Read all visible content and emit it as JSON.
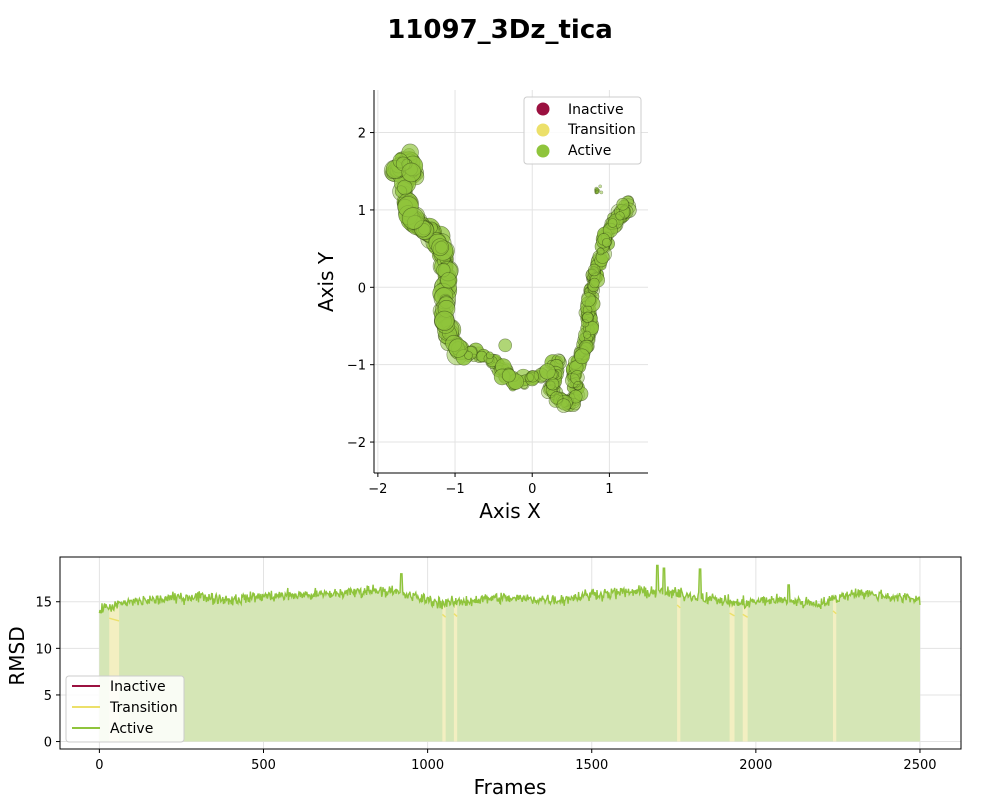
{
  "figure": {
    "title": "11097_3Dz_tica"
  },
  "colors": {
    "inactive": "#9b1140",
    "transition": "#ece06a",
    "active": "#8fc43c",
    "active_fill": "#d5e6b6",
    "transition_fill": "#f3efc1"
  },
  "chart_data": [
    {
      "type": "scatter",
      "title": "",
      "xlabel": "Axis X",
      "ylabel": "Axis Y",
      "xlim": [
        -2.05,
        1.5
      ],
      "ylim": [
        -2.4,
        2.55
      ],
      "xticks": [
        -2,
        -1,
        0,
        1
      ],
      "yticks": [
        -2,
        -1,
        0,
        1,
        2
      ],
      "grid": true,
      "legend": {
        "placement": "top-right",
        "entries": [
          "Inactive",
          "Transition",
          "Active"
        ]
      },
      "path": [
        [
          -1.8,
          1.45
        ],
        [
          -1.7,
          1.6
        ],
        [
          -1.6,
          1.7
        ],
        [
          -1.55,
          1.45
        ],
        [
          -1.65,
          1.2
        ],
        [
          -1.6,
          0.95
        ],
        [
          -1.45,
          0.8
        ],
        [
          -1.3,
          0.7
        ],
        [
          -1.15,
          0.45
        ],
        [
          -1.1,
          0.2
        ],
        [
          -1.12,
          -0.1
        ],
        [
          -1.15,
          -0.4
        ],
        [
          -1.05,
          -0.7
        ],
        [
          -0.9,
          -0.85
        ],
        [
          -0.6,
          -0.9
        ],
        [
          -0.4,
          -1.05
        ],
        [
          -0.2,
          -1.25
        ],
        [
          0.0,
          -1.15
        ],
        [
          0.2,
          -1.1
        ],
        [
          0.35,
          -0.95
        ],
        [
          0.25,
          -1.35
        ],
        [
          0.4,
          -1.5
        ],
        [
          0.6,
          -1.45
        ],
        [
          0.55,
          -1.1
        ],
        [
          0.65,
          -0.85
        ],
        [
          0.75,
          -0.6
        ],
        [
          0.72,
          -0.3
        ],
        [
          0.78,
          -0.05
        ],
        [
          0.82,
          0.2
        ],
        [
          0.9,
          0.4
        ],
        [
          0.95,
          0.65
        ],
        [
          1.05,
          0.85
        ],
        [
          1.2,
          1.0
        ],
        [
          1.25,
          1.1
        ]
      ],
      "sparse_cluster": [
        0.85,
        1.25
      ],
      "outlier": [
        -0.35,
        -0.75
      ],
      "series": [
        {
          "name": "Inactive",
          "count": 0
        },
        {
          "name": "Transition",
          "count": 0
        },
        {
          "name": "Active",
          "count": 2500
        }
      ]
    },
    {
      "type": "line",
      "title": "",
      "xlabel": "Frames",
      "ylabel": "RMSD",
      "xlim": [
        -120,
        2625
      ],
      "ylim": [
        -0.8,
        19.8
      ],
      "xticks": [
        0,
        500,
        1000,
        1500,
        2000,
        2500
      ],
      "yticks": [
        0,
        5,
        10,
        15
      ],
      "grid": true,
      "legend": {
        "placement": "lower-left",
        "entries": [
          "Inactive",
          "Transition",
          "Active"
        ]
      },
      "frames": 2500,
      "baseline_profile": [
        [
          0,
          14.2
        ],
        [
          100,
          15.0
        ],
        [
          300,
          15.6
        ],
        [
          400,
          15.2
        ],
        [
          500,
          15.6
        ],
        [
          700,
          15.8
        ],
        [
          850,
          16.3
        ],
        [
          900,
          16.0
        ],
        [
          1000,
          15.2
        ],
        [
          1050,
          14.8
        ],
        [
          1200,
          15.4
        ],
        [
          1400,
          15.2
        ],
        [
          1500,
          15.8
        ],
        [
          1650,
          16.1
        ],
        [
          1750,
          15.9
        ],
        [
          1850,
          15.4
        ],
        [
          1950,
          14.8
        ],
        [
          2050,
          15.2
        ],
        [
          2200,
          14.8
        ],
        [
          2300,
          16.0
        ],
        [
          2500,
          15.2
        ]
      ],
      "noise_amplitude": 0.9,
      "spikes": [
        [
          920,
          18.0
        ],
        [
          1700,
          18.9
        ],
        [
          1720,
          18.6
        ],
        [
          1830,
          18.5
        ],
        [
          2100,
          16.8
        ]
      ],
      "transition_bands": [
        [
          30,
          60
        ],
        [
          1045,
          1055
        ],
        [
          1080,
          1090
        ],
        [
          1760,
          1770
        ],
        [
          1920,
          1935
        ],
        [
          1960,
          1975
        ],
        [
          2235,
          2245
        ]
      ],
      "series": [
        {
          "name": "Inactive"
        },
        {
          "name": "Transition"
        },
        {
          "name": "Active"
        }
      ]
    }
  ]
}
